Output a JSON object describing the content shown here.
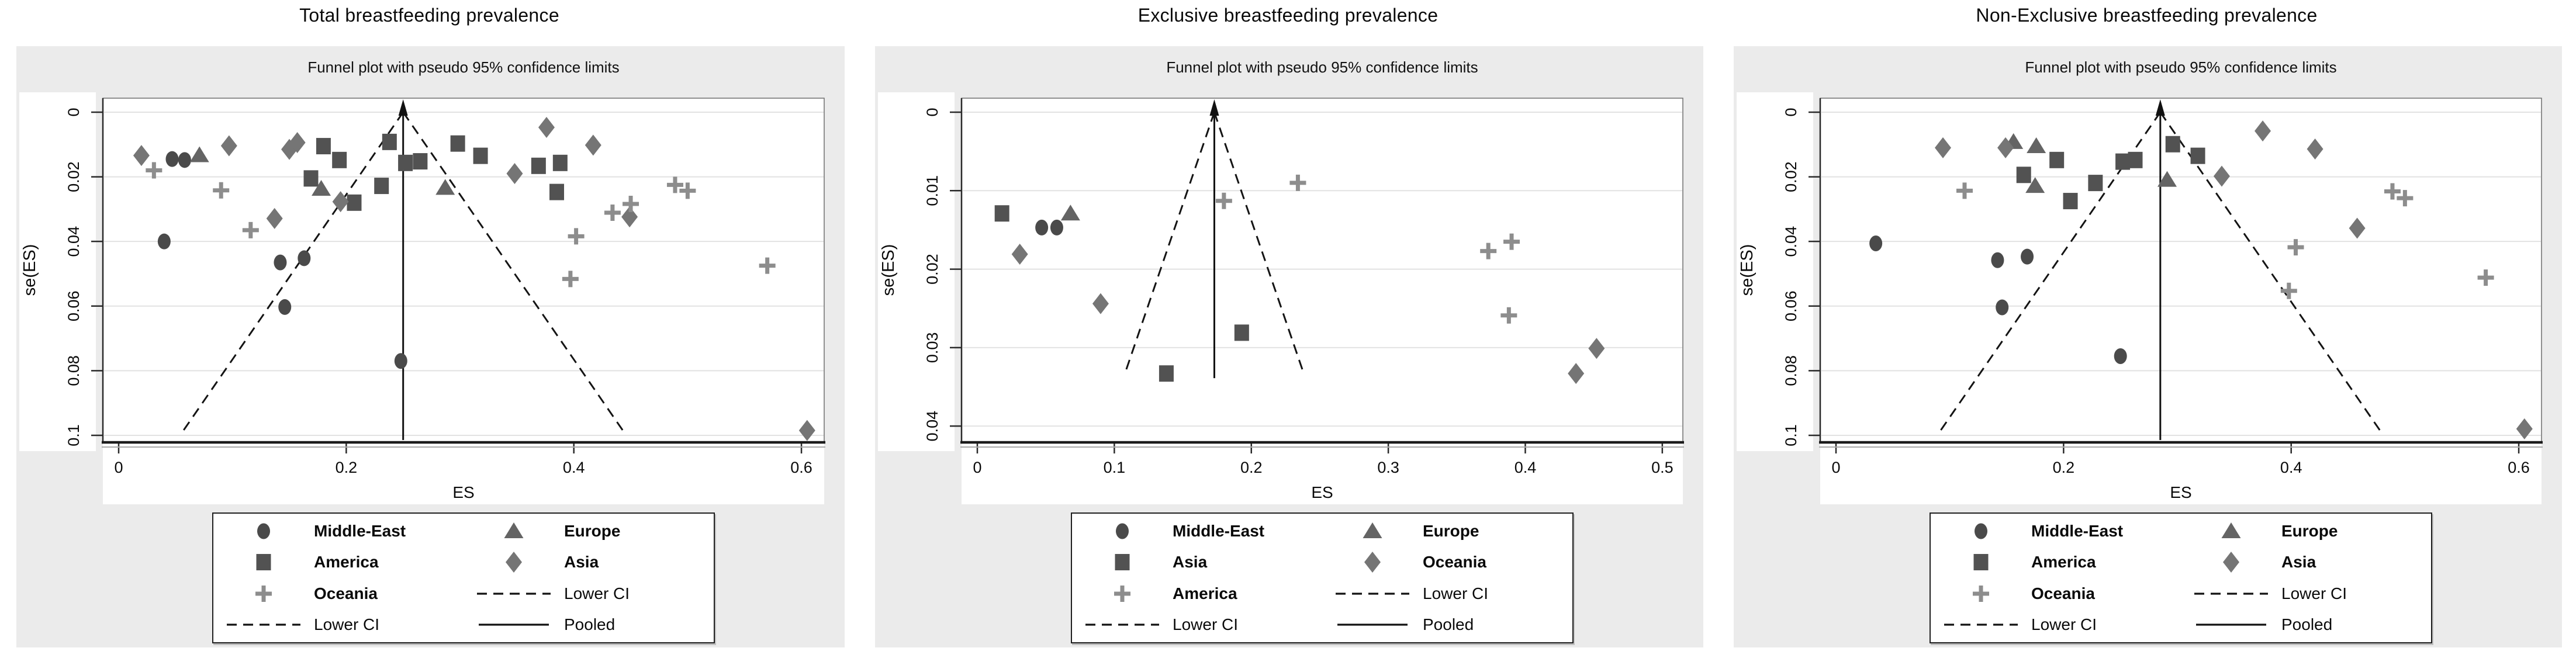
{
  "chart_data": [
    {
      "type": "scatter",
      "variant": "funnel-plot",
      "title": "Total breastfeeding prevalence",
      "subtitle": "Funnel plot with pseudo 95% confidence limits",
      "xlabel": "ES",
      "ylabel": "se(ES)",
      "xlim": [
        0,
        0.62
      ],
      "ylim": [
        0,
        0.102
      ],
      "x_ticks": [
        {
          "v": 0,
          "label": "0"
        },
        {
          "v": 0.2,
          "label": "0.2"
        },
        {
          "v": 0.4,
          "label": "0.4"
        },
        {
          "v": 0.6,
          "label": "0.6"
        }
      ],
      "y_ticks": [
        {
          "v": 0,
          "label": "0"
        },
        {
          "v": 0.02,
          "label": "0.02"
        },
        {
          "v": 0.04,
          "label": "0.04"
        },
        {
          "v": 0.06,
          "label": "0.06"
        },
        {
          "v": 0.08,
          "label": "0.08"
        },
        {
          "v": 0.1,
          "label": "0.1"
        }
      ],
      "grid": true,
      "pooled_es": 0.25,
      "ci_multiplier": 1.96,
      "funnel_se_end": 0.1,
      "series": [
        {
          "name": "Middle-East",
          "marker": "circle",
          "color": "#4a4a4a",
          "points": [
            [
              0.047,
              0.0145
            ],
            [
              0.058,
              0.0148
            ],
            [
              0.04,
              0.04
            ],
            [
              0.142,
              0.0465
            ],
            [
              0.163,
              0.0452
            ],
            [
              0.146,
              0.0603
            ],
            [
              0.248,
              0.077
            ]
          ]
        },
        {
          "name": "America",
          "marker": "square",
          "color": "#525252",
          "points": [
            [
              0.169,
              0.0205
            ],
            [
              0.18,
              0.0105
            ],
            [
              0.194,
              0.0148
            ],
            [
              0.207,
              0.028
            ],
            [
              0.231,
              0.0228
            ],
            [
              0.238,
              0.0092
            ],
            [
              0.252,
              0.0157
            ],
            [
              0.265,
              0.0152
            ],
            [
              0.298,
              0.0097
            ],
            [
              0.318,
              0.0135
            ],
            [
              0.369,
              0.0166
            ],
            [
              0.385,
              0.0247
            ],
            [
              0.388,
              0.0157
            ]
          ]
        },
        {
          "name": "Europe",
          "marker": "triangle",
          "color": "#646464",
          "points": [
            [
              0.071,
              0.0133
            ],
            [
              0.178,
              0.0237
            ],
            [
              0.287,
              0.0234
            ]
          ]
        },
        {
          "name": "Asia",
          "marker": "diamond",
          "color": "#757575",
          "points": [
            [
              0.02,
              0.0134
            ],
            [
              0.097,
              0.0104
            ],
            [
              0.15,
              0.0115
            ],
            [
              0.157,
              0.0094
            ],
            [
              0.137,
              0.0329
            ],
            [
              0.195,
              0.0277
            ],
            [
              0.348,
              0.019
            ],
            [
              0.376,
              0.0047
            ],
            [
              0.417,
              0.0102
            ],
            [
              0.449,
              0.0324
            ],
            [
              0.605,
              0.0985
            ]
          ]
        },
        {
          "name": "Oceania",
          "marker": "plus",
          "color": "#8d8d8d",
          "points": [
            [
              0.031,
              0.018
            ],
            [
              0.09,
              0.0242
            ],
            [
              0.116,
              0.0365
            ],
            [
              0.397,
              0.0516
            ],
            [
              0.402,
              0.0384
            ],
            [
              0.434,
              0.0311
            ],
            [
              0.45,
              0.0284
            ],
            [
              0.489,
              0.0225
            ],
            [
              0.5,
              0.0243
            ],
            [
              0.57,
              0.0475
            ]
          ]
        }
      ],
      "legend": [
        {
          "marker": "circle",
          "label": "Middle-East",
          "bold": true
        },
        {
          "marker": "triangle",
          "label": "Europe",
          "bold": true
        },
        {
          "marker": "square",
          "label": "America",
          "bold": true
        },
        {
          "marker": "diamond",
          "label": "Asia",
          "bold": true
        },
        {
          "marker": "plus",
          "label": "Oceania",
          "bold": true
        },
        {
          "marker": "dash",
          "label": "Lower CI",
          "bold": false
        },
        {
          "marker": "dash",
          "label": "Lower CI",
          "bold": false
        },
        {
          "marker": "line",
          "label": "Pooled",
          "bold": false
        }
      ]
    },
    {
      "type": "scatter",
      "variant": "funnel-plot",
      "title": "Exclusive breastfeeding prevalence",
      "subtitle": "Funnel plot with pseudo 95% confidence limits",
      "xlabel": "ES",
      "ylabel": "se(ES)",
      "xlim": [
        0,
        0.515
      ],
      "ylim": [
        0,
        0.042
      ],
      "x_ticks": [
        {
          "v": 0,
          "label": "0"
        },
        {
          "v": 0.1,
          "label": "0.1"
        },
        {
          "v": 0.2,
          "label": "0.2"
        },
        {
          "v": 0.3,
          "label": "0.3"
        },
        {
          "v": 0.4,
          "label": "0.4"
        },
        {
          "v": 0.5,
          "label": "0.5"
        }
      ],
      "y_ticks": [
        {
          "v": 0,
          "label": "0"
        },
        {
          "v": 0.01,
          "label": "0.01"
        },
        {
          "v": 0.02,
          "label": "0.02"
        },
        {
          "v": 0.03,
          "label": "0.03"
        },
        {
          "v": 0.04,
          "label": "0.04"
        }
      ],
      "grid": true,
      "pooled_es": 0.173,
      "ci_multiplier": 1.96,
      "funnel_se_end": 0.0333,
      "series": [
        {
          "name": "Middle-East",
          "marker": "circle",
          "color": "#4a4a4a",
          "points": [
            [
              0.047,
              0.0147
            ],
            [
              0.058,
              0.0147
            ]
          ]
        },
        {
          "name": "Asia",
          "marker": "square",
          "color": "#525252",
          "points": [
            [
              0.018,
              0.0129
            ],
            [
              0.138,
              0.0333
            ],
            [
              0.193,
              0.0281
            ]
          ]
        },
        {
          "name": "Europe",
          "marker": "triangle",
          "color": "#646464",
          "points": [
            [
              0.068,
              0.0129
            ]
          ]
        },
        {
          "name": "Oceania",
          "marker": "diamond",
          "color": "#757575",
          "points": [
            [
              0.031,
              0.0181
            ],
            [
              0.09,
              0.0244
            ],
            [
              0.437,
              0.0333
            ],
            [
              0.452,
              0.0301
            ]
          ]
        },
        {
          "name": "America",
          "marker": "plus",
          "color": "#8d8d8d",
          "points": [
            [
              0.18,
              0.0113
            ],
            [
              0.234,
              0.009
            ],
            [
              0.373,
              0.0177
            ],
            [
              0.39,
              0.0165
            ],
            [
              0.388,
              0.0259
            ]
          ]
        }
      ],
      "legend": [
        {
          "marker": "circle",
          "label": "Middle-East",
          "bold": true
        },
        {
          "marker": "triangle",
          "label": "Europe",
          "bold": true
        },
        {
          "marker": "square",
          "label": "Asia",
          "bold": true
        },
        {
          "marker": "diamond",
          "label": "Oceania",
          "bold": true
        },
        {
          "marker": "plus",
          "label": "America",
          "bold": true
        },
        {
          "marker": "dash",
          "label": "Lower CI",
          "bold": false
        },
        {
          "marker": "dash",
          "label": "Lower CI",
          "bold": false
        },
        {
          "marker": "line",
          "label": "Pooled",
          "bold": false
        }
      ]
    },
    {
      "type": "scatter",
      "variant": "funnel-plot",
      "title": "Non-Exclusive breastfeeding prevalence",
      "subtitle": "Funnel plot with pseudo 95% confidence limits",
      "xlabel": "ES",
      "ylabel": "se(ES)",
      "xlim": [
        0,
        0.62
      ],
      "ylim": [
        0,
        0.102
      ],
      "x_ticks": [
        {
          "v": 0,
          "label": "0"
        },
        {
          "v": 0.2,
          "label": "0.2"
        },
        {
          "v": 0.4,
          "label": "0.4"
        },
        {
          "v": 0.6,
          "label": "0.6"
        }
      ],
      "y_ticks": [
        {
          "v": 0,
          "label": "0"
        },
        {
          "v": 0.02,
          "label": "0.02"
        },
        {
          "v": 0.04,
          "label": "0.04"
        },
        {
          "v": 0.06,
          "label": "0.06"
        },
        {
          "v": 0.08,
          "label": "0.08"
        },
        {
          "v": 0.1,
          "label": "0.1"
        }
      ],
      "grid": true,
      "pooled_es": 0.285,
      "ci_multiplier": 1.96,
      "funnel_se_end": 0.1,
      "series": [
        {
          "name": "Middle-East",
          "marker": "circle",
          "color": "#4a4a4a",
          "points": [
            [
              0.035,
              0.0406
            ],
            [
              0.142,
              0.0458
            ],
            [
              0.168,
              0.0447
            ],
            [
              0.146,
              0.0604
            ],
            [
              0.25,
              0.0755
            ]
          ]
        },
        {
          "name": "America",
          "marker": "square",
          "color": "#525252",
          "points": [
            [
              0.165,
              0.0194
            ],
            [
              0.194,
              0.0148
            ],
            [
              0.206,
              0.0275
            ],
            [
              0.228,
              0.0219
            ],
            [
              0.252,
              0.0153
            ],
            [
              0.263,
              0.0148
            ],
            [
              0.296,
              0.0099
            ],
            [
              0.318,
              0.0135
            ]
          ]
        },
        {
          "name": "Europe",
          "marker": "triangle",
          "color": "#646464",
          "points": [
            [
              0.156,
              0.0092
            ],
            [
              0.176,
              0.0105
            ],
            [
              0.175,
              0.0228
            ],
            [
              0.291,
              0.0209
            ]
          ]
        },
        {
          "name": "Asia",
          "marker": "diamond",
          "color": "#757575",
          "points": [
            [
              0.094,
              0.011
            ],
            [
              0.149,
              0.011
            ],
            [
              0.339,
              0.0198
            ],
            [
              0.375,
              0.0058
            ],
            [
              0.421,
              0.0114
            ],
            [
              0.458,
              0.0359
            ],
            [
              0.605,
              0.098
            ]
          ]
        },
        {
          "name": "Oceania",
          "marker": "plus",
          "color": "#8d8d8d",
          "points": [
            [
              0.113,
              0.0243
            ],
            [
              0.398,
              0.0553
            ],
            [
              0.404,
              0.0418
            ],
            [
              0.489,
              0.0245
            ],
            [
              0.5,
              0.0266
            ],
            [
              0.571,
              0.0512
            ]
          ]
        }
      ],
      "legend": [
        {
          "marker": "circle",
          "label": "Middle-East",
          "bold": true
        },
        {
          "marker": "triangle",
          "label": "Europe",
          "bold": true
        },
        {
          "marker": "square",
          "label": "America",
          "bold": true
        },
        {
          "marker": "diamond",
          "label": "Asia",
          "bold": true
        },
        {
          "marker": "plus",
          "label": "Oceania",
          "bold": true
        },
        {
          "marker": "dash",
          "label": "Lower CI",
          "bold": false
        },
        {
          "marker": "dash",
          "label": "Lower CI",
          "bold": false
        },
        {
          "marker": "line",
          "label": "Pooled",
          "bold": false
        }
      ]
    }
  ],
  "style": {
    "figure_bg": "#ebebeb",
    "plot_bg": "#ffffff",
    "gridline_color": "#e2e2e2",
    "axis_color": "#1b1b1b",
    "frame_color": "#6e6e6e",
    "text_color": "#0a0a0a",
    "funnel_line_color": "#141414"
  }
}
